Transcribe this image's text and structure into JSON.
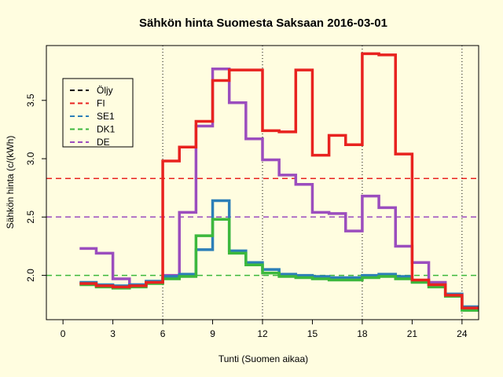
{
  "chart_data": {
    "type": "line",
    "step": true,
    "title": "Sähkön hinta Suomesta Saksaan 2016-03-01",
    "xlabel": "Tunti (Suomen aikaa)",
    "ylabel": "Sähkön hinta (c/(kWh)",
    "xlim": [
      -1,
      25
    ],
    "ylim": [
      1.62,
      3.97
    ],
    "xticks": [
      0,
      3,
      6,
      9,
      12,
      15,
      18,
      21,
      24
    ],
    "xtick_labels": [
      "0",
      "3",
      "6",
      "9",
      "12",
      "15",
      "18",
      "21",
      "24"
    ],
    "yticks": [
      2.0,
      2.5,
      3.0,
      3.5
    ],
    "ytick_labels": [
      "2.0",
      "2.5",
      "3.0",
      "3.5"
    ],
    "vlines": [
      6,
      12,
      18,
      24
    ],
    "legend": {
      "placement": "top-left",
      "entries": [
        {
          "label": "Öljy",
          "color": "#000000"
        },
        {
          "label": "FI",
          "color": "#e8221f"
        },
        {
          "label": "SE1",
          "color": "#2c7fb8"
        },
        {
          "label": "DK1",
          "color": "#3cb83c"
        },
        {
          "label": "DE",
          "color": "#9b4dbe"
        }
      ]
    },
    "hlines": [
      {
        "name": "FI",
        "value": 2.83,
        "color": "#e8221f"
      },
      {
        "name": "DE",
        "value": 2.5,
        "color": "#9b4dbe"
      },
      {
        "name": "DK1",
        "value": 2.0,
        "color": "#3cb83c"
      }
    ],
    "x": [
      1,
      2,
      3,
      4,
      5,
      6,
      7,
      8,
      9,
      10,
      11,
      12,
      13,
      14,
      15,
      16,
      17,
      18,
      19,
      20,
      21,
      22,
      23,
      24,
      25
    ],
    "series": [
      {
        "name": "DE",
        "color": "#9b4dbe",
        "values": [
          2.23,
          2.19,
          1.97,
          1.92,
          1.94,
          2.0,
          2.54,
          3.28,
          3.77,
          3.48,
          3.17,
          2.99,
          2.86,
          2.78,
          2.54,
          2.53,
          2.38,
          2.68,
          2.58,
          2.25,
          2.11,
          1.94,
          1.84,
          1.73,
          1.73
        ]
      },
      {
        "name": "SE1",
        "color": "#2c7fb8",
        "values": [
          1.94,
          1.92,
          1.91,
          1.92,
          1.95,
          1.99,
          2.01,
          2.22,
          2.64,
          2.21,
          2.11,
          2.05,
          2.01,
          2.0,
          1.99,
          1.98,
          1.98,
          2.0,
          2.01,
          1.99,
          1.95,
          1.92,
          1.84,
          1.73,
          1.73
        ]
      },
      {
        "name": "DK1",
        "color": "#3cb83c",
        "values": [
          1.92,
          1.9,
          1.89,
          1.9,
          1.93,
          1.97,
          1.99,
          2.34,
          2.48,
          2.19,
          2.09,
          2.02,
          1.99,
          1.98,
          1.97,
          1.96,
          1.96,
          1.98,
          1.99,
          1.97,
          1.94,
          1.9,
          1.82,
          1.7,
          1.7
        ]
      },
      {
        "name": "FI",
        "color": "#e8221f",
        "values": [
          1.93,
          1.91,
          1.9,
          1.91,
          1.94,
          2.98,
          3.1,
          3.32,
          3.67,
          3.76,
          3.76,
          3.24,
          3.23,
          3.76,
          3.03,
          3.2,
          3.12,
          3.9,
          3.89,
          3.04,
          1.96,
          1.92,
          1.83,
          1.72,
          1.72
        ]
      }
    ]
  }
}
